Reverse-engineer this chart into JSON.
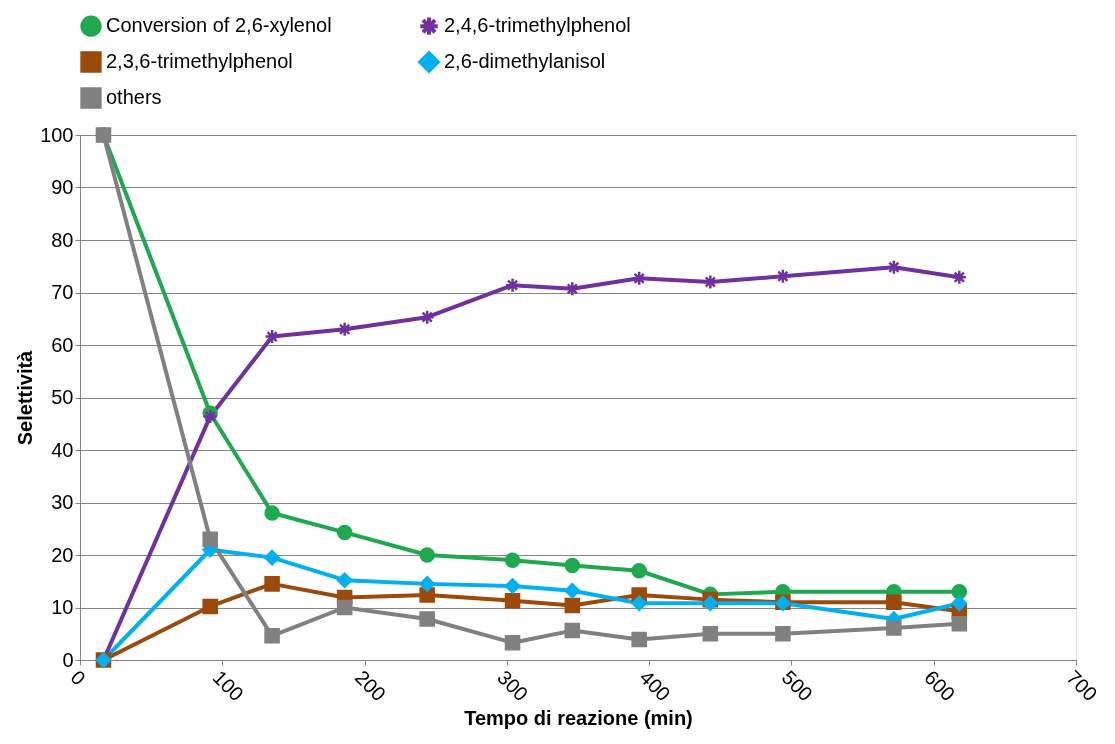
{
  "chart_data": {
    "type": "line",
    "xlabel": "Tempo di reazione (min)",
    "ylabel": "Selettività",
    "x": [
      16.5,
      91.5,
      135,
      186,
      244,
      304,
      346,
      393,
      443,
      494,
      572,
      618
    ],
    "xlim": [
      0,
      700
    ],
    "xticks": [
      0,
      100,
      200,
      300,
      400,
      500,
      600,
      700
    ],
    "ylim": [
      0,
      100
    ],
    "yticks": [
      0,
      10,
      20,
      30,
      40,
      50,
      60,
      70,
      80,
      90,
      100
    ],
    "grid": "y",
    "legend": "top",
    "series": [
      {
        "name": "Conversion of 2,6-xylenol",
        "color": "#1fa94f",
        "marker": "circle",
        "values": [
          100,
          47,
          28,
          24.3,
          20,
          19,
          18,
          17,
          12.5,
          13,
          13,
          13
        ]
      },
      {
        "name": "2,4,6-trimethylphenol",
        "color": "#7030a0",
        "marker": "cross",
        "values": [
          0,
          46.4,
          61.6,
          63,
          65.3,
          71.4,
          70.7,
          72.7,
          72,
          73.1,
          74.8,
          72.9
        ]
      },
      {
        "name": "2,3,6-trimethylphenol",
        "color": "#9c4a0b",
        "marker": "square",
        "values": [
          0,
          10.2,
          14.5,
          11.9,
          12.4,
          11.3,
          10.4,
          12.4,
          11.5,
          11,
          11,
          9.3
        ]
      },
      {
        "name": "2,6-dimethylanisol",
        "color": "#00b0f0",
        "marker": "diamond",
        "values": [
          0,
          21,
          19.5,
          15.2,
          14.5,
          14.1,
          13.2,
          10.8,
          10.8,
          10.8,
          7.8,
          10.8
        ]
      },
      {
        "name": "others",
        "color": "#808080",
        "marker": "square",
        "values": [
          100,
          23,
          4.6,
          10,
          7.8,
          3.3,
          5.6,
          3.9,
          5,
          5,
          6.1,
          6.9
        ]
      }
    ]
  }
}
